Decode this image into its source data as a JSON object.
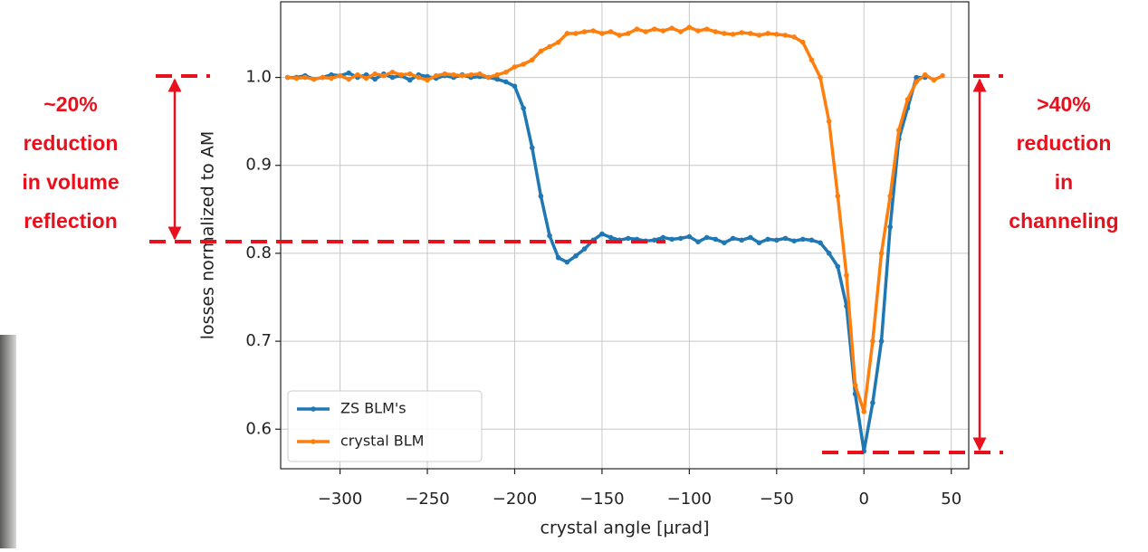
{
  "chart_data": {
    "type": "line",
    "xlabel": "crystal angle [μrad]",
    "ylabel": "losses normalized to AM",
    "x": [
      -330,
      -325,
      -320,
      -315,
      -310,
      -305,
      -300,
      -295,
      -290,
      -285,
      -280,
      -275,
      -270,
      -265,
      -260,
      -255,
      -250,
      -245,
      -240,
      -235,
      -230,
      -225,
      -220,
      -215,
      -210,
      -205,
      -200,
      -195,
      -190,
      -185,
      -180,
      -175,
      -170,
      -165,
      -160,
      -155,
      -150,
      -145,
      -140,
      -135,
      -130,
      -125,
      -120,
      -115,
      -110,
      -105,
      -100,
      -95,
      -90,
      -85,
      -80,
      -75,
      -70,
      -65,
      -60,
      -55,
      -50,
      -45,
      -40,
      -35,
      -30,
      -25,
      -20,
      -15,
      -10,
      -5,
      0,
      5,
      10,
      15,
      20,
      25,
      30,
      35,
      40,
      45
    ],
    "series": [
      {
        "name": "ZS BLM's",
        "color": "#1f77b4",
        "values": [
          1.0,
          1.0,
          1.002,
          0.998,
          1.0,
          1.003,
          1.002,
          1.005,
          1.0,
          1.003,
          0.998,
          1.004,
          1.0,
          1.002,
          0.997,
          1.003,
          1.001,
          0.999,
          1.002,
          1.0,
          1.003,
          1.0,
          1.001,
          1.0,
          0.998,
          0.995,
          0.99,
          0.965,
          0.92,
          0.865,
          0.82,
          0.795,
          0.79,
          0.797,
          0.805,
          0.815,
          0.822,
          0.818,
          0.815,
          0.817,
          0.816,
          0.814,
          0.815,
          0.818,
          0.816,
          0.817,
          0.819,
          0.813,
          0.818,
          0.816,
          0.812,
          0.817,
          0.815,
          0.818,
          0.812,
          0.816,
          0.815,
          0.817,
          0.814,
          0.816,
          0.815,
          0.812,
          0.8,
          0.785,
          0.74,
          0.64,
          0.575,
          0.63,
          0.7,
          0.83,
          0.93,
          0.965,
          1.0,
          1.0,
          null,
          null
        ]
      },
      {
        "name": "crystal BLM",
        "color": "#ff7f0e",
        "values": [
          1.0,
          0.999,
          1.0,
          0.998,
          1.0,
          0.999,
          1.002,
          0.998,
          1.003,
          0.999,
          1.004,
          1.002,
          1.006,
          1.003,
          1.004,
          1.0,
          0.997,
          1.002,
          1.004,
          1.003,
          1.002,
          1.003,
          1.004,
          1.0,
          1.003,
          1.006,
          1.012,
          1.015,
          1.02,
          1.03,
          1.035,
          1.04,
          1.05,
          1.05,
          1.052,
          1.053,
          1.05,
          1.052,
          1.048,
          1.05,
          1.055,
          1.052,
          1.055,
          1.053,
          1.056,
          1.052,
          1.057,
          1.053,
          1.055,
          1.052,
          1.05,
          1.049,
          1.051,
          1.05,
          1.048,
          1.05,
          1.049,
          1.048,
          1.046,
          1.04,
          1.02,
          1.0,
          0.95,
          0.865,
          0.775,
          0.65,
          0.62,
          0.7,
          0.8,
          0.865,
          0.94,
          0.975,
          0.995,
          1.003,
          0.997,
          1.002
        ]
      }
    ],
    "xlim": [
      -334,
      60
    ],
    "ylim": [
      0.555,
      1.086
    ],
    "xticks": [
      {
        "value": -300,
        "label": "−300"
      },
      {
        "value": -250,
        "label": "−250"
      },
      {
        "value": -200,
        "label": "−200"
      },
      {
        "value": -150,
        "label": "−150"
      },
      {
        "value": -100,
        "label": "−100"
      },
      {
        "value": -50,
        "label": "−50"
      },
      0,
      50
    ],
    "yticks": [
      0.6,
      0.7,
      0.8,
      0.9,
      {
        "value": 1,
        "label": "1.0"
      }
    ],
    "grid": true,
    "legend": "lower left",
    "annotations_left": [
      "~20%",
      "reduction",
      "in volume",
      "reflection"
    ],
    "annotations_right": [
      ">40%",
      "reduction",
      "in",
      "channeling"
    ]
  }
}
